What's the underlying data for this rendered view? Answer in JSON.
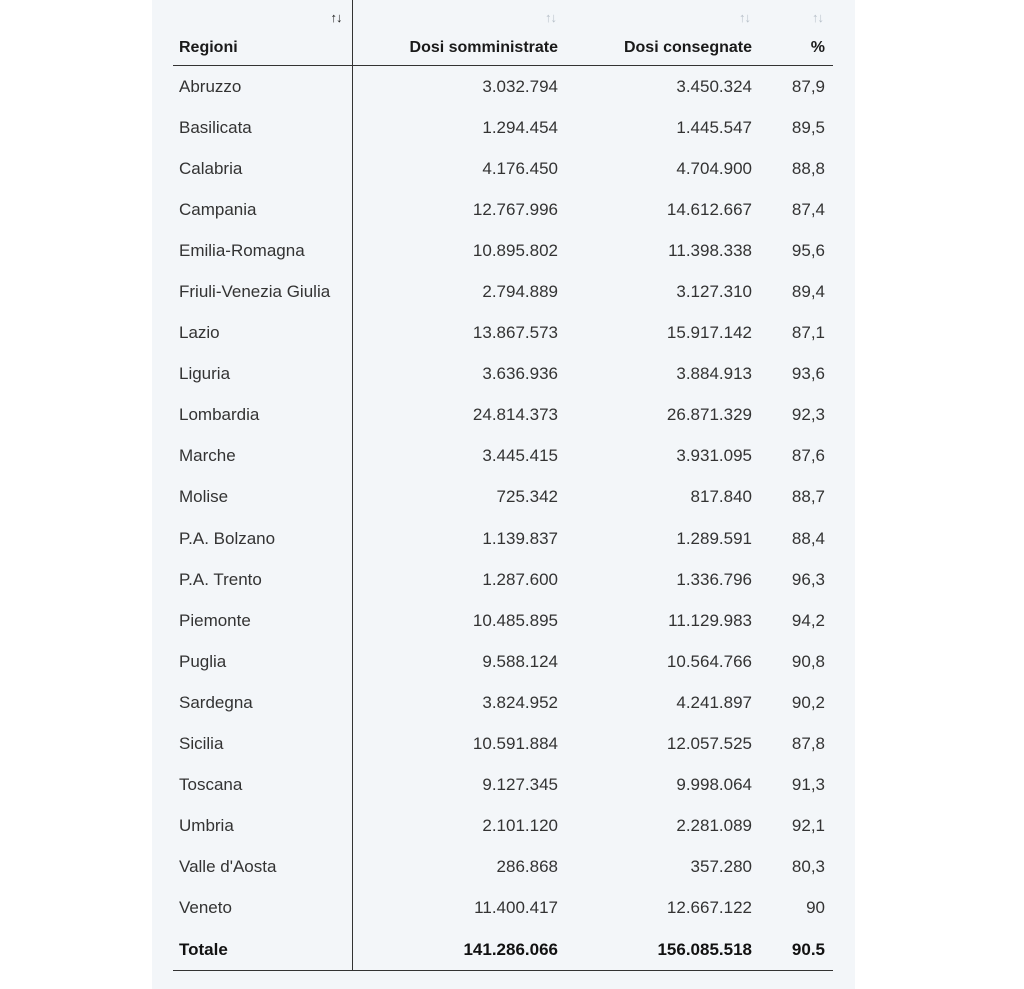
{
  "table": {
    "headers": {
      "region": "Regioni",
      "administered": "Dosi somministrate",
      "delivered": "Dosi consegnate",
      "percent": "%"
    },
    "sort_glyph": "↑↓",
    "rows": [
      {
        "region": "Abruzzo",
        "administered": "3.032.794",
        "delivered": "3.450.324",
        "percent": "87,9"
      },
      {
        "region": "Basilicata",
        "administered": "1.294.454",
        "delivered": "1.445.547",
        "percent": "89,5"
      },
      {
        "region": "Calabria",
        "administered": "4.176.450",
        "delivered": "4.704.900",
        "percent": "88,8"
      },
      {
        "region": "Campania",
        "administered": "12.767.996",
        "delivered": "14.612.667",
        "percent": "87,4"
      },
      {
        "region": "Emilia-Romagna",
        "administered": "10.895.802",
        "delivered": "11.398.338",
        "percent": "95,6"
      },
      {
        "region": "Friuli-Venezia Giulia",
        "administered": "2.794.889",
        "delivered": "3.127.310",
        "percent": "89,4"
      },
      {
        "region": "Lazio",
        "administered": "13.867.573",
        "delivered": "15.917.142",
        "percent": "87,1"
      },
      {
        "region": "Liguria",
        "administered": "3.636.936",
        "delivered": "3.884.913",
        "percent": "93,6"
      },
      {
        "region": "Lombardia",
        "administered": "24.814.373",
        "delivered": "26.871.329",
        "percent": "92,3"
      },
      {
        "region": "Marche",
        "administered": "3.445.415",
        "delivered": "3.931.095",
        "percent": "87,6"
      },
      {
        "region": "Molise",
        "administered": "725.342",
        "delivered": "817.840",
        "percent": "88,7"
      },
      {
        "region": "P.A. Bolzano",
        "administered": "1.139.837",
        "delivered": "1.289.591",
        "percent": "88,4"
      },
      {
        "region": "P.A. Trento",
        "administered": "1.287.600",
        "delivered": "1.336.796",
        "percent": "96,3"
      },
      {
        "region": "Piemonte",
        "administered": "10.485.895",
        "delivered": "11.129.983",
        "percent": "94,2"
      },
      {
        "region": "Puglia",
        "administered": "9.588.124",
        "delivered": "10.564.766",
        "percent": "90,8"
      },
      {
        "region": "Sardegna",
        "administered": "3.824.952",
        "delivered": "4.241.897",
        "percent": "90,2"
      },
      {
        "region": "Sicilia",
        "administered": "10.591.884",
        "delivered": "12.057.525",
        "percent": "87,8"
      },
      {
        "region": "Toscana",
        "administered": "9.127.345",
        "delivered": "9.998.064",
        "percent": "91,3"
      },
      {
        "region": "Umbria",
        "administered": "2.101.120",
        "delivered": "2.281.089",
        "percent": "92,1"
      },
      {
        "region": "Valle d'Aosta",
        "administered": "286.868",
        "delivered": "357.280",
        "percent": "80,3"
      },
      {
        "region": "Veneto",
        "administered": "11.400.417",
        "delivered": "12.667.122",
        "percent": "90"
      }
    ],
    "total": {
      "region": "Totale",
      "administered": "141.286.066",
      "delivered": "156.085.518",
      "percent": "90.5"
    }
  },
  "colors": {
    "panel_bg": "#f3f6f9",
    "sort_inactive": "#b9c1ca",
    "sort_active": "#222222",
    "rule": "#333333"
  }
}
